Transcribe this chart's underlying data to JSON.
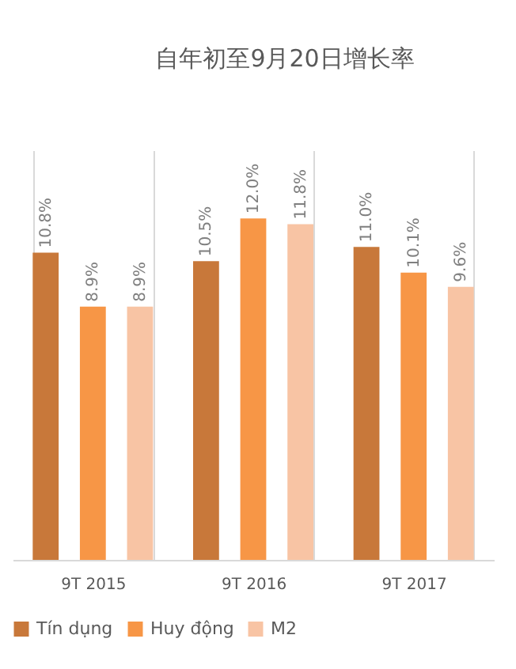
{
  "chart_data": {
    "type": "bar",
    "title": "自年初至9月20日增长率",
    "categories": [
      "9T 2015",
      "9T 2016",
      "9T 2017"
    ],
    "series": [
      {
        "name": "Tín dụng",
        "color": "#c8783a",
        "values": [
          10.8,
          10.5,
          11.0
        ],
        "value_labels": [
          "10.8%",
          "10.5%",
          "11.0%"
        ]
      },
      {
        "name": "Huy động",
        "color": "#f79646",
        "values": [
          8.9,
          12.0,
          10.1
        ],
        "value_labels": [
          "8.9%",
          "12.0%",
          "10.1%"
        ]
      },
      {
        "name": "M2",
        "color": "#f8c4a4",
        "values": [
          8.9,
          11.8,
          9.6
        ],
        "value_labels": [
          "8.9%",
          "11.8%",
          "9.6%"
        ]
      }
    ],
    "grid": "x",
    "legend": "bottom",
    "tick_labels": "x"
  }
}
